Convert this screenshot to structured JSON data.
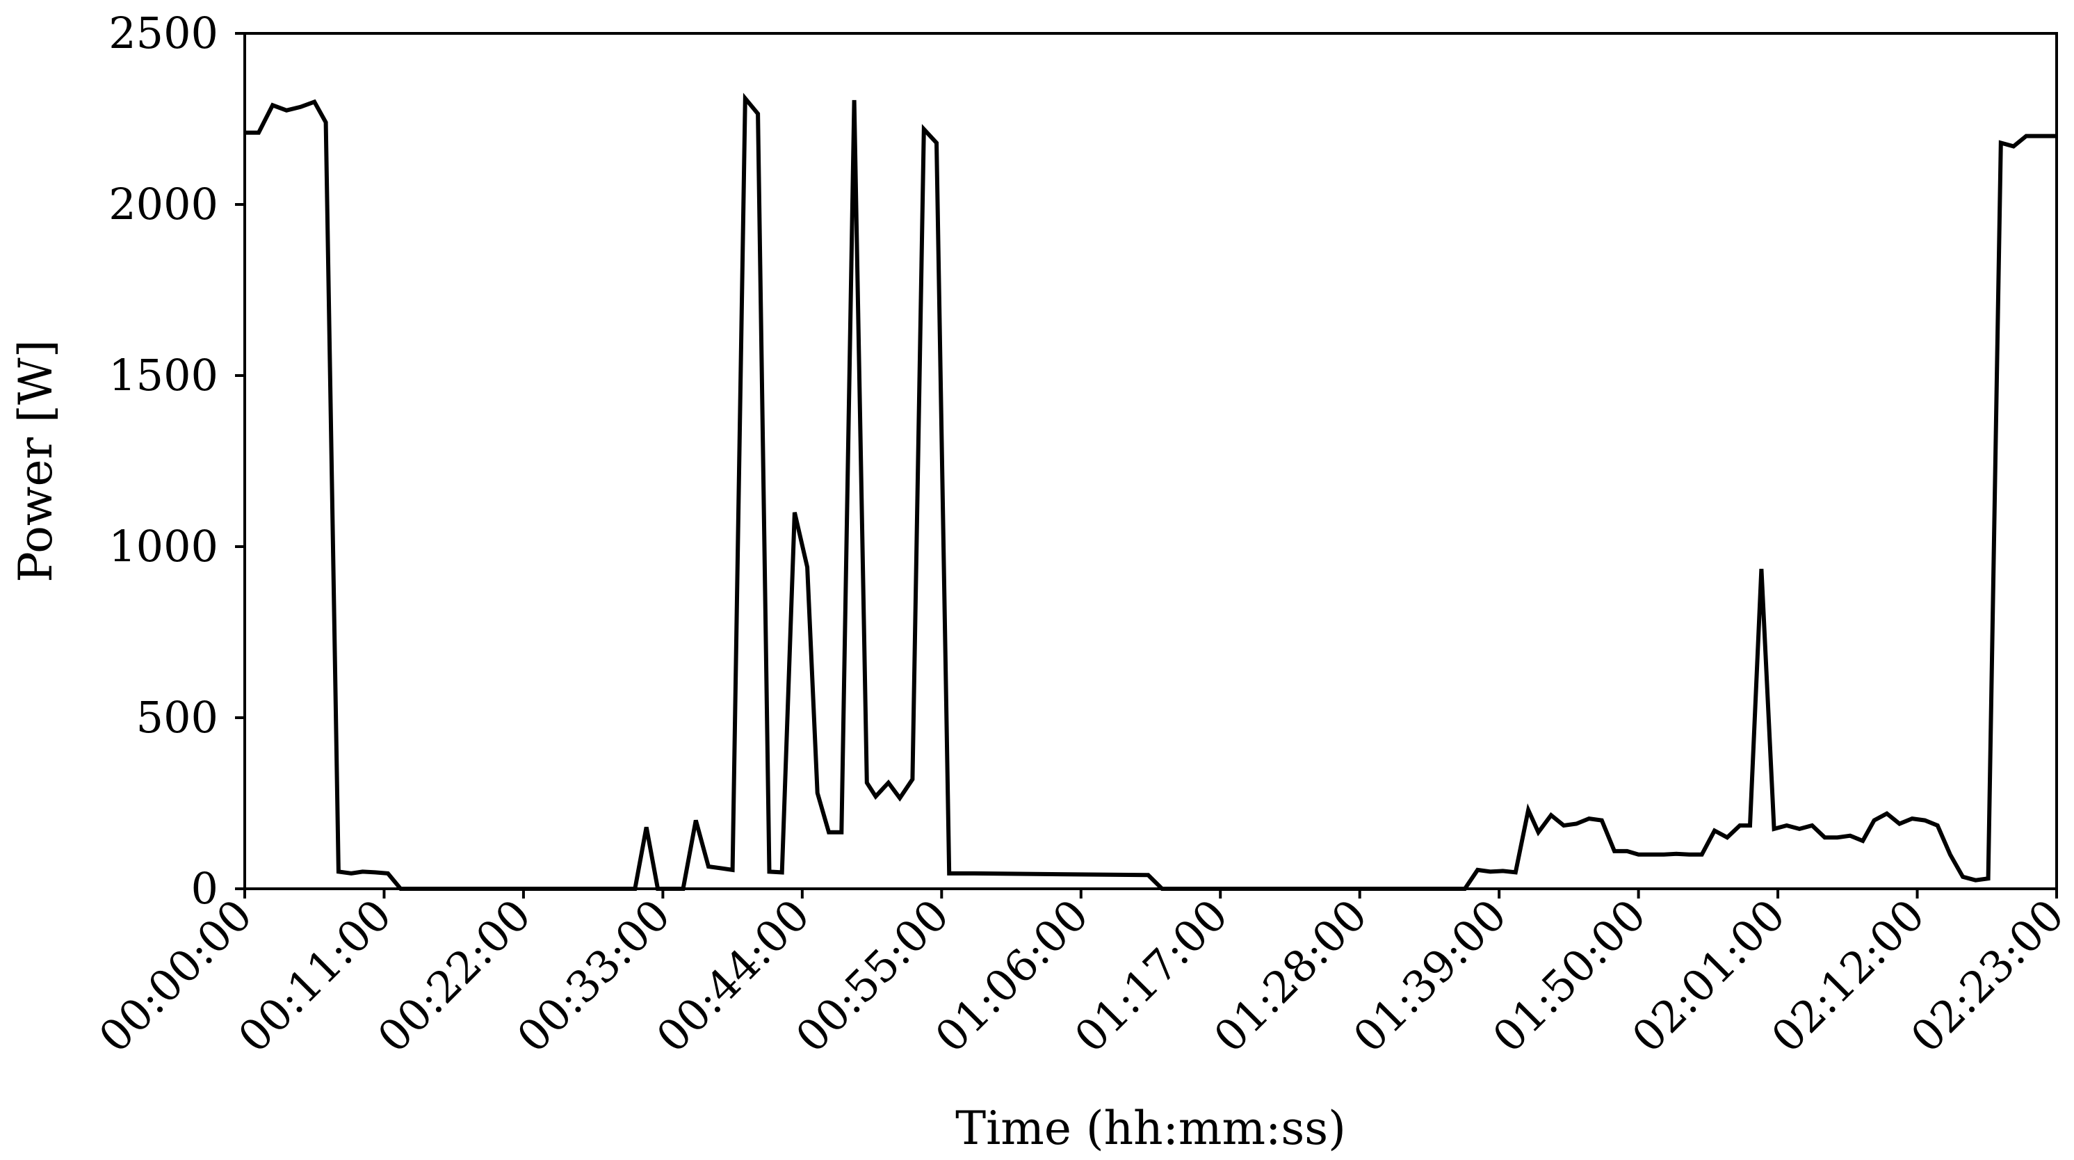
{
  "chart_data": {
    "type": "line",
    "title": "",
    "xlabel": "Time (hh:mm:ss)",
    "ylabel": "Power [W]",
    "ylim": [
      0,
      2500
    ],
    "yticks": [
      0,
      500,
      1000,
      1500,
      2000,
      2500
    ],
    "xlim": [
      0,
      143
    ],
    "xticks": [
      "00:00:00",
      "00:11:00",
      "00:22:00",
      "00:33:00",
      "00:44:00",
      "00:55:00",
      "01:06:00",
      "01:17:00",
      "01:28:00",
      "01:39:00",
      "01:50:00",
      "02:01:00",
      "02:12:00",
      "02:23:00"
    ],
    "grid": false,
    "legend": "none",
    "line_color": "#000000",
    "series": [
      {
        "x": [
          0,
          1.1,
          2.2,
          3.3,
          4.4,
          5.5,
          6.4,
          7.4,
          8.4,
          9.3,
          10.3,
          11.3,
          12.3,
          13.3,
          30.8,
          31.7,
          32.6,
          33.6,
          34.6,
          35.6,
          36.6,
          37.6,
          38.5,
          39.5,
          40.5,
          41.4,
          42.4,
          43.4,
          44.4,
          45.2,
          46.1,
          47.1,
          48.1,
          49.1,
          49.8,
          50.8,
          51.7,
          52.7,
          53.6,
          54.6,
          55.6,
          56.6,
          57.6,
          71.3,
          72.4,
          96.3,
          97.3,
          98.3,
          99.3,
          100.3,
          101.3,
          102.1,
          103.1,
          104.1,
          105.1,
          106.1,
          107.1,
          108.1,
          109.1,
          110.0,
          111.0,
          112.0,
          113.0,
          114.0,
          115.0,
          116.0,
          117.0,
          118.0,
          118.8,
          119.7,
          120.7,
          121.7,
          122.7,
          123.7,
          124.7,
          125.7,
          126.7,
          127.7,
          128.6,
          129.6,
          130.6,
          131.6,
          132.6,
          133.6,
          134.6,
          135.6,
          136.6,
          137.6,
          138.6,
          139.6,
          140.6,
          141.5,
          142.5,
          143
        ],
        "y": [
          2210,
          2210,
          2290,
          2275,
          2285,
          2300,
          2240,
          50,
          45,
          50,
          48,
          45,
          0,
          0,
          0,
          180,
          0,
          0,
          0,
          200,
          65,
          60,
          55,
          2310,
          2265,
          50,
          48,
          1100,
          940,
          280,
          165,
          165,
          2305,
          310,
          270,
          310,
          265,
          320,
          2220,
          2180,
          45,
          45,
          45,
          40,
          0,
          0,
          55,
          50,
          52,
          48,
          230,
          165,
          215,
          185,
          190,
          205,
          200,
          110,
          110,
          100,
          100,
          100,
          102,
          100,
          100,
          170,
          150,
          185,
          185,
          935,
          175,
          185,
          175,
          185,
          150,
          150,
          155,
          140,
          200,
          220,
          190,
          205,
          200,
          185,
          100,
          35,
          25,
          30,
          2180,
          2170,
          2200,
          2200,
          2200,
          2200
        ]
      }
    ]
  }
}
